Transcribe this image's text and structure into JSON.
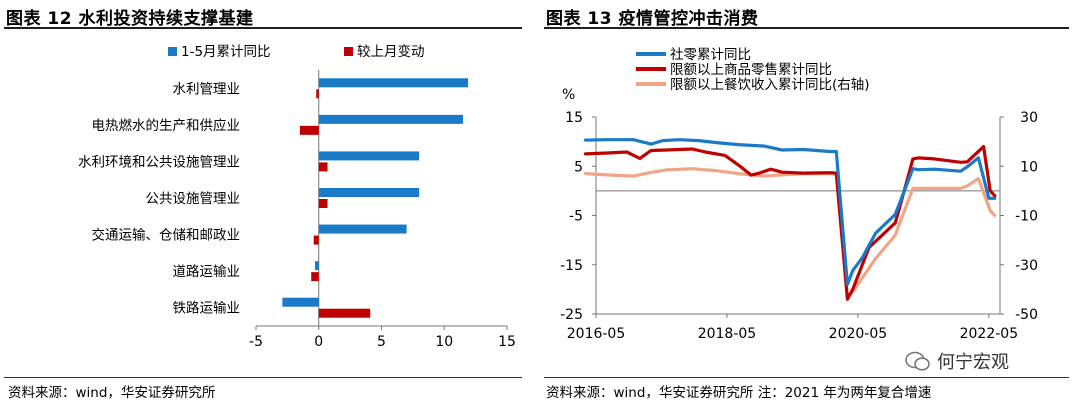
{
  "left": {
    "title": "图表 12  水利投资持续支撑基建",
    "source": "资料来源：wind，华安证券研究所",
    "chart_data": {
      "type": "bar",
      "orientation": "horizontal",
      "categories": [
        "水利管理业",
        "电热燃水的生产和供应业",
        "水利环境和公共设施管理业",
        "公共设施管理业",
        "交通运输、仓储和邮政业",
        "道路运输业",
        "铁路运输业"
      ],
      "series": [
        {
          "name": "1-5月累计同比",
          "color": "#1a7ac8",
          "values": [
            11.9,
            11.5,
            8.0,
            8.0,
            7.0,
            -0.3,
            -2.9
          ]
        },
        {
          "name": "较上月变动",
          "color": "#c00000",
          "values": [
            -0.2,
            -1.5,
            0.7,
            0.7,
            -0.4,
            -0.6,
            4.1
          ]
        }
      ],
      "xlim": [
        -5,
        15
      ],
      "xticks": [
        "-5",
        "0",
        "5",
        "10",
        "15"
      ],
      "xlabel": "",
      "ylabel": ""
    }
  },
  "right": {
    "title": "图表 13  疫情管控冲击消费",
    "source": "资料来源：wind，华安证券研究所  注：2021 年为两年复合增速",
    "chart_data": {
      "type": "line",
      "ylabel_left": "%",
      "yleft_lim": [
        -25,
        15
      ],
      "yleft_ticks": [
        "15",
        "5",
        "-5",
        "-15",
        "-25"
      ],
      "yright_lim": [
        -50,
        30
      ],
      "yright_ticks": [
        "30",
        "10",
        "-10",
        "-30",
        "-50"
      ],
      "xlim": [
        2016.33,
        2022.5
      ],
      "xticks": [
        "2016-05",
        "2018-05",
        "2020-05",
        "2022-05"
      ],
      "xtick_values": [
        2016.33,
        2018.33,
        2020.33,
        2022.33
      ],
      "series": [
        {
          "name": "社零累计同比",
          "color": "#1a7ac8",
          "axis": "left",
          "x": [
            2016.17,
            2016.5,
            2016.9,
            2017.17,
            2017.35,
            2017.6,
            2017.9,
            2018.17,
            2018.5,
            2018.9,
            2019.17,
            2019.5,
            2019.9,
            2020.0,
            2020.17,
            2020.25,
            2020.4,
            2020.6,
            2020.9,
            2021.17,
            2021.25,
            2021.5,
            2021.9,
            2022.0,
            2022.17,
            2022.33,
            2022.42
          ],
          "y": [
            10.3,
            10.4,
            10.4,
            9.5,
            10.2,
            10.4,
            10.2,
            9.8,
            9.4,
            9.1,
            8.3,
            8.4,
            8.0,
            8.0,
            -19.0,
            -16.2,
            -13.5,
            -8.6,
            -4.8,
            4.5,
            4.3,
            4.4,
            4.0,
            4.9,
            6.7,
            -1.5,
            -1.5
          ]
        },
        {
          "name": "限额以上商品零售累计同比",
          "color": "#c00000",
          "axis": "left",
          "x": [
            2016.17,
            2016.5,
            2016.8,
            2017.0,
            2017.17,
            2017.4,
            2017.8,
            2018.0,
            2018.3,
            2018.5,
            2018.7,
            2018.8,
            2019.0,
            2019.17,
            2019.5,
            2019.9,
            2020.0,
            2020.17,
            2020.25,
            2020.5,
            2020.9,
            2021.0,
            2021.17,
            2021.25,
            2021.5,
            2021.9,
            2022.0,
            2022.25,
            2022.35,
            2022.42
          ],
          "y": [
            7.5,
            7.7,
            7.9,
            6.6,
            8.2,
            8.3,
            8.5,
            7.9,
            7.2,
            5.3,
            3.2,
            3.5,
            4.4,
            3.8,
            3.6,
            3.7,
            3.6,
            -22.0,
            -20.0,
            -11.5,
            -6.5,
            -1.8,
            6.5,
            6.7,
            6.5,
            5.8,
            5.9,
            9.0,
            0.0,
            -1.0
          ]
        },
        {
          "name": "限额以上餐饮收入累计同比(右轴)",
          "color": "#f0a586",
          "axis": "right",
          "x": [
            2016.17,
            2016.5,
            2016.9,
            2017.17,
            2017.4,
            2017.8,
            2018.17,
            2018.5,
            2018.9,
            2019.17,
            2019.5,
            2019.9,
            2020.0,
            2020.17,
            2020.25,
            2020.6,
            2020.9,
            2021.17,
            2021.25,
            2021.5,
            2021.9,
            2022.0,
            2022.17,
            2022.35,
            2022.42
          ],
          "y": [
            7.0,
            6.5,
            6.0,
            7.5,
            8.5,
            9.0,
            8.2,
            7.0,
            6.0,
            6.5,
            7.0,
            7.0,
            7.0,
            -43.0,
            -41.0,
            -27.5,
            -18.0,
            1.0,
            1.0,
            1.0,
            1.0,
            2.0,
            5.0,
            -8.0,
            -10.0
          ]
        }
      ]
    }
  },
  "watermark": "何宁宏观"
}
